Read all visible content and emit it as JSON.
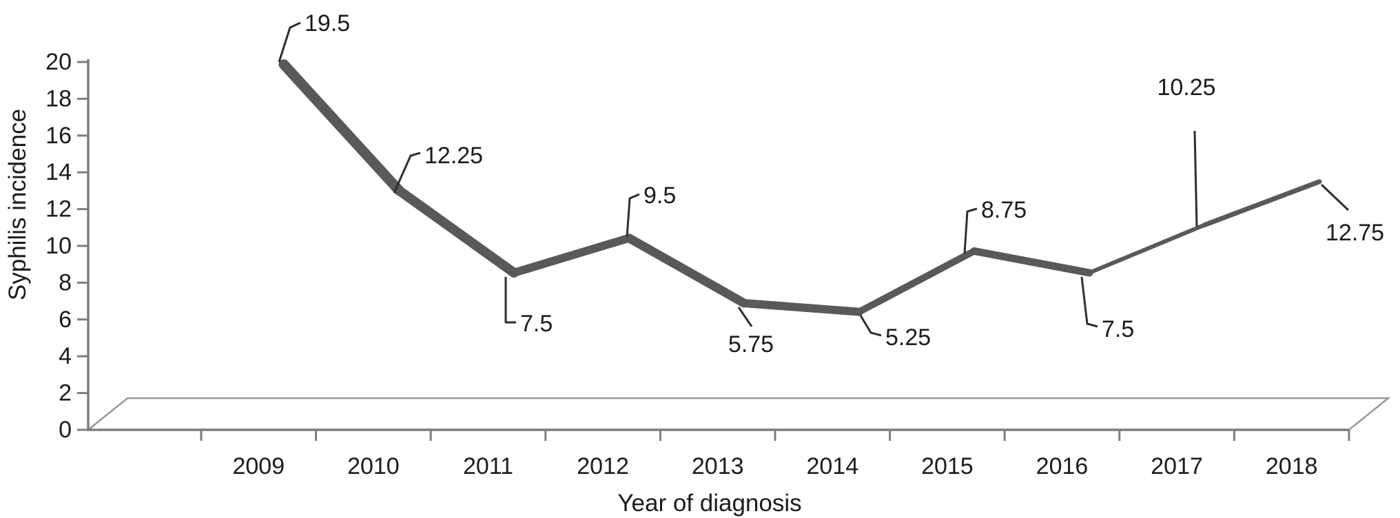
{
  "chart_data": {
    "type": "line",
    "title": "",
    "xlabel": "Year of diagnosis",
    "ylabel": "Syphilis incidence",
    "categories": [
      "2009",
      "2010",
      "2011",
      "2012",
      "2013",
      "2014",
      "2015",
      "2016",
      "2017",
      "2018"
    ],
    "values": [
      19.5,
      12.25,
      7.5,
      9.5,
      5.75,
      5.25,
      8.75,
      7.5,
      10.25,
      12.75
    ],
    "data_labels": [
      "19.5",
      "12.25",
      "7.5",
      "9.5",
      "5.75",
      "5.25",
      "8.75",
      "7.5",
      "10.25",
      "12.75"
    ],
    "ylim": [
      0,
      20
    ],
    "y_ticks": [
      0,
      2,
      4,
      6,
      8,
      10,
      12,
      14,
      16,
      18,
      20
    ],
    "grid": false,
    "legend": null,
    "perspective": "3d-floor",
    "colors": {
      "series_line": "#58595b",
      "axis": "#7d7d7d",
      "floor": "#989898",
      "leader": "#2e2e2e",
      "text": "#1c1c1c",
      "background": "#ffffff"
    }
  }
}
